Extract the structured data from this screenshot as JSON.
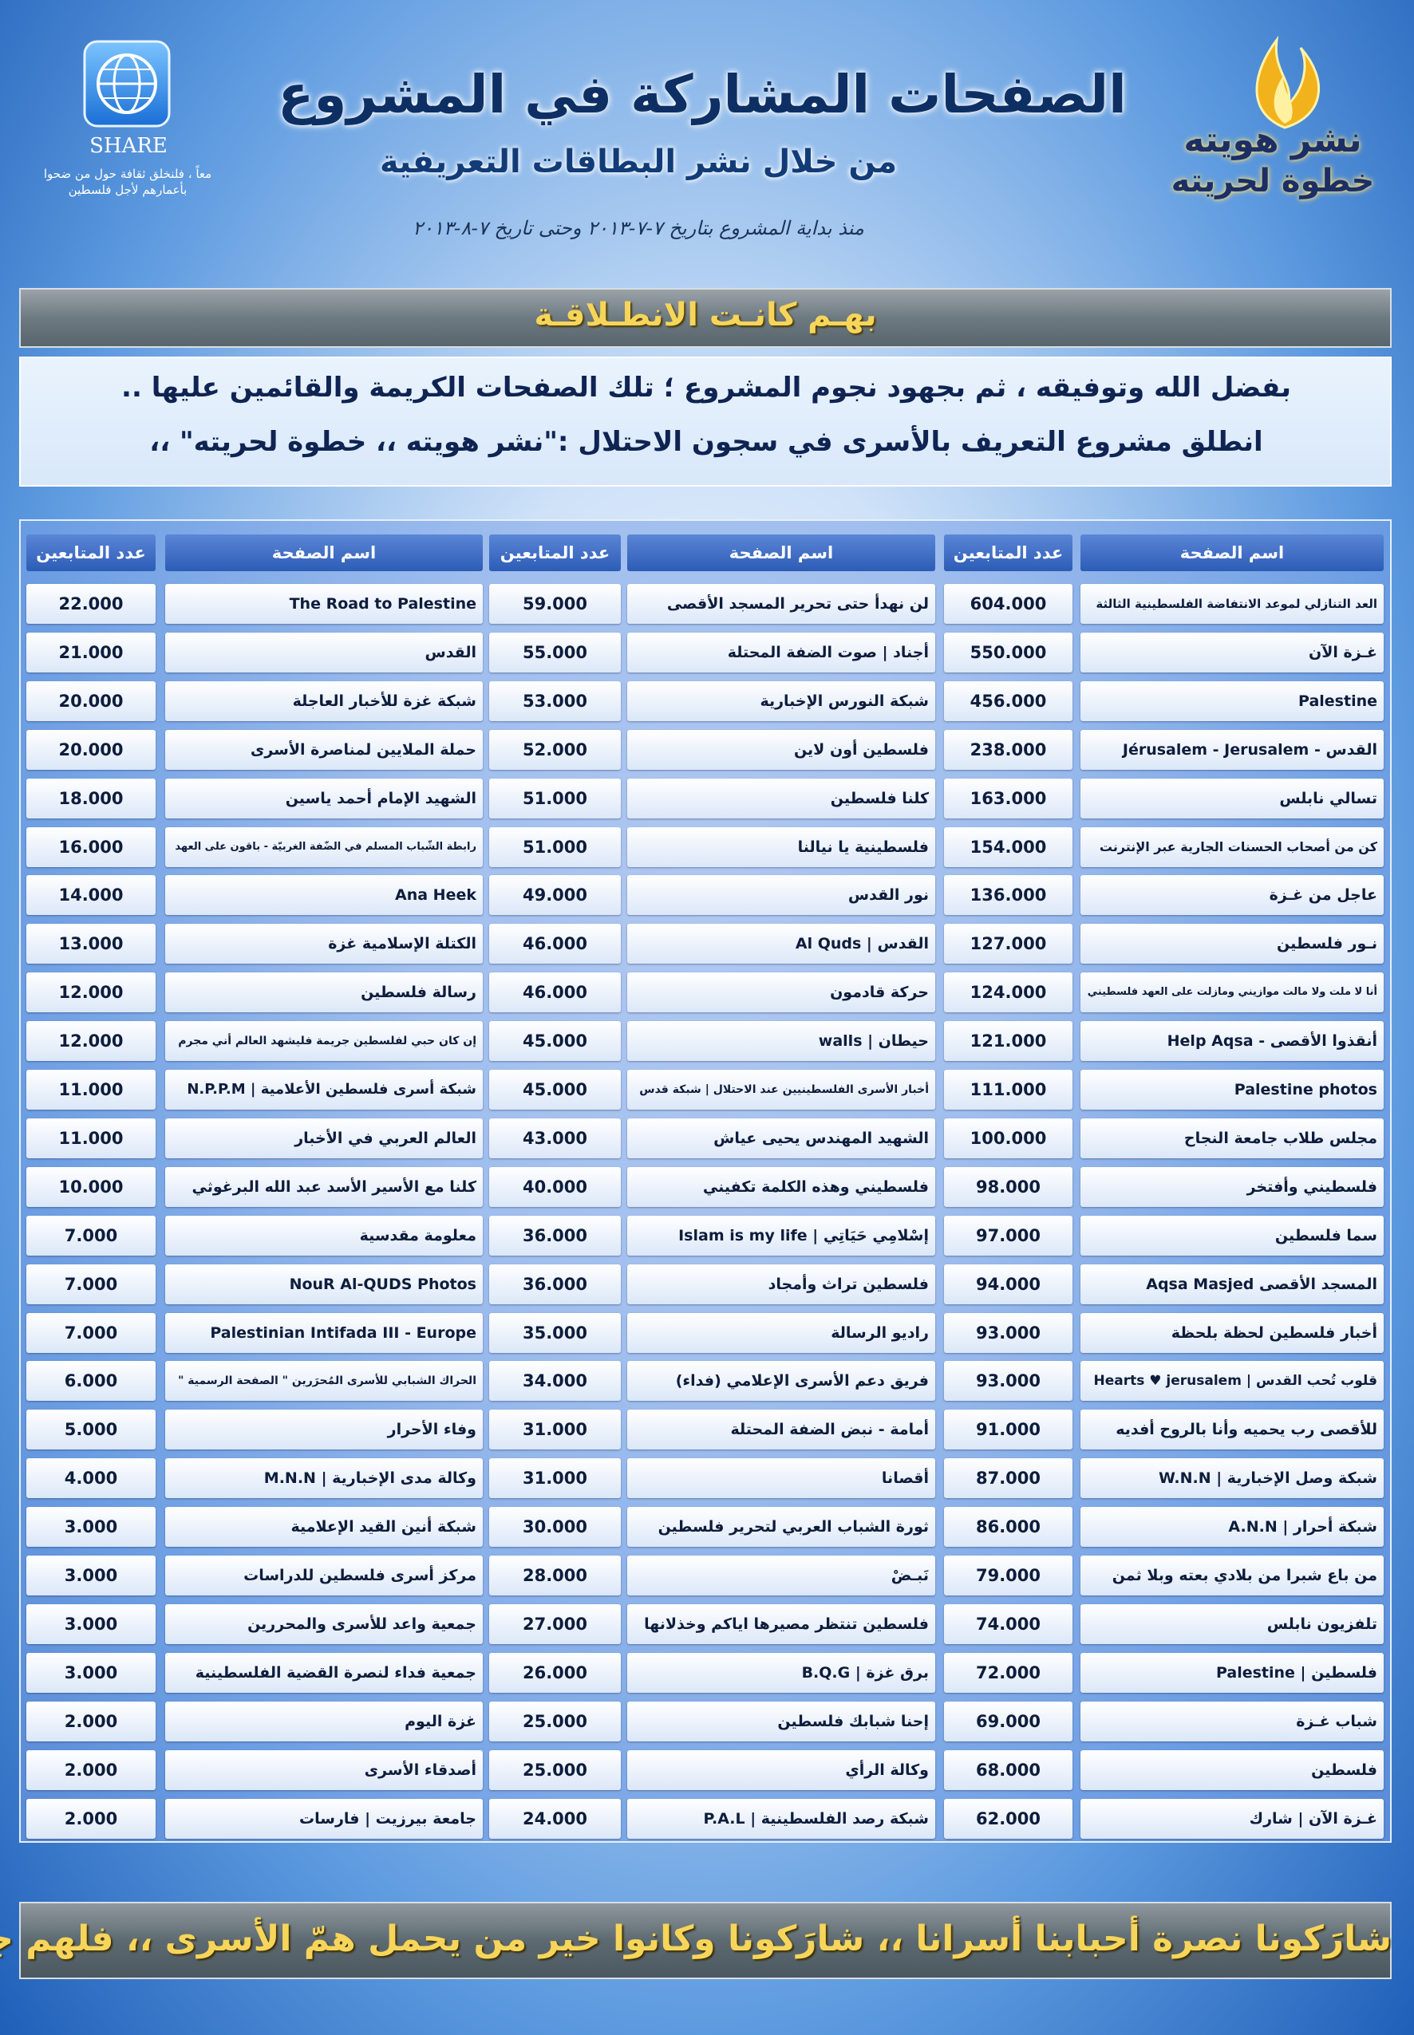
{
  "header": {
    "title": "الصفحات المشاركة في المشروع",
    "subtitle": "من خلال نشر البطاقات التعريفية",
    "date": "منذ بداية المشروع بتاريخ ٧-٧-٢٠١٣ وحتى تاريخ ٧-٨-٢٠١٣"
  },
  "share": {
    "label": "SHARE",
    "tagline": "معاً ، فلنخلق ثقافة حول من ضحوا بأعمارهم لأجل فلسطين"
  },
  "logo": {
    "line1": "نشر هويته",
    "line2": "خطوة لحريته"
  },
  "banner": "بهـم كانـت الانطـلاقـة",
  "intro": [
    "بفضل الله وتوفيقه ، ثم بجهود نجوم المشروع ؛ تلك الصفحات الكريمة والقائمين عليها ..",
    "انطلق مشروع التعريف بالأسرى في سجون الاحتلال :\"نشر هويته ،، خطوة لحريته\" ،،"
  ],
  "table": {
    "columns": [
      "اسم الصفحة",
      "عدد المتابعين"
    ],
    "groups": [
      [
        [
          "العد التنازلي لموعد الانتفاضة الفلسطينية الثالثة",
          "604.000"
        ],
        [
          "غـزة الآن",
          "550.000"
        ],
        [
          "Palestine",
          "456.000"
        ],
        [
          "القدس - Jérusalem - Jerusalem",
          "238.000"
        ],
        [
          "تسالي نابلس",
          "163.000"
        ],
        [
          "كن من أصحاب الحسنات الجارية عبر الإنترنت",
          "154.000"
        ],
        [
          "عاجل من غـزة",
          "136.000"
        ],
        [
          "نـور فلسطين",
          "127.000"
        ],
        [
          "أنا لا ملت ولا مالت موازيني ومازلت على العهد فلسطيني",
          "124.000"
        ],
        [
          "أنقذوا الأقصى - Help Aqsa",
          "121.000"
        ],
        [
          "Palestine photos",
          "111.000"
        ],
        [
          "مجلس طلاب جامعة النجاح",
          "100.000"
        ],
        [
          "فلسطيني وأفتخر",
          "98.000"
        ],
        [
          "سما فلسطين",
          "97.000"
        ],
        [
          "المسجد الأقصى Aqsa Masjed",
          "94.000"
        ],
        [
          "أخبار فلسطين لحظة بلحظة",
          "93.000"
        ],
        [
          "قلوب تُحب القدس | Hearts ♥ jerusalem",
          "93.000"
        ],
        [
          "للأقصى رب يحميه وأنا بالروح أفديه",
          "91.000"
        ],
        [
          "شبكة وصل الإخبارية | W.N.N",
          "87.000"
        ],
        [
          "شبكة أحرار | A.N.N",
          "86.000"
        ],
        [
          "من باع شبرا من بلادي بعته وبلا ثمن",
          "79.000"
        ],
        [
          "تلفزيون نابلس",
          "74.000"
        ],
        [
          "فلسطين | Palestine",
          "72.000"
        ],
        [
          "شباب غـزة",
          "69.000"
        ],
        [
          "فلسطين",
          "68.000"
        ],
        [
          "غـزة الآن | شارك",
          "62.000"
        ]
      ],
      [
        [
          "لن نهدأ حتى تحرير المسجد الأقصى",
          "59.000"
        ],
        [
          "أجناد | صوت الضفة المحتلة",
          "55.000"
        ],
        [
          "شبكة النورس الإخبارية",
          "53.000"
        ],
        [
          "فلسطين أون لاين",
          "52.000"
        ],
        [
          "كلنا فلسطين",
          "51.000"
        ],
        [
          "فلسطينية يا نيالنا",
          "51.000"
        ],
        [
          "نور القدس",
          "49.000"
        ],
        [
          "القدس | Al Quds",
          "46.000"
        ],
        [
          "حركة قادمون",
          "46.000"
        ],
        [
          "حيطان | walls",
          "45.000"
        ],
        [
          "أخبار الأسرى الفلسطينيين عند الاحتلال | شبكة قدس",
          "45.000"
        ],
        [
          "الشهيد المهندس يحيى عياش",
          "43.000"
        ],
        [
          "فلسطيني وهذه الكلمة تكفيني",
          "40.000"
        ],
        [
          "إسْلامِي حَيَاتِي | Islam is my life",
          "36.000"
        ],
        [
          "فلسطين تراث وأمجاد",
          "36.000"
        ],
        [
          "راديو الرسالة",
          "35.000"
        ],
        [
          "فريق دعم الأسرى الإعلامي (فداء)",
          "34.000"
        ],
        [
          "أمامة - نبض الضفة المحتلة",
          "31.000"
        ],
        [
          "أقصانا",
          "31.000"
        ],
        [
          "ثورة الشباب العربي لتحرير فلسطين",
          "30.000"
        ],
        [
          "نَبـضْ",
          "28.000"
        ],
        [
          "فلسطين تنتظر مصيرها اياكم وخذلانها",
          "27.000"
        ],
        [
          "برق غزة | B.Q.G",
          "26.000"
        ],
        [
          "إحنا شبابك فلسطين",
          "25.000"
        ],
        [
          "وكالة الرأي",
          "25.000"
        ],
        [
          "شبكة رصد الفلسطينية | P.A.L",
          "24.000"
        ]
      ],
      [
        [
          "The Road to Palestine",
          "22.000"
        ],
        [
          "القدس",
          "21.000"
        ],
        [
          "شبكة غزة للأخبار العاجلة",
          "20.000"
        ],
        [
          "حملة الملايين لمناصرة الأسرى",
          "20.000"
        ],
        [
          "الشهيد الإمام أحمد ياسين",
          "18.000"
        ],
        [
          "رابطة الشّباب المسلم في الضّفة الغربيّة - باقون على العهد",
          "16.000"
        ],
        [
          "Ana Heek",
          "14.000"
        ],
        [
          "الكتلة الإسلامية غزة",
          "13.000"
        ],
        [
          "رسالة فلسطين",
          "12.000"
        ],
        [
          "إن كان حبي لفلسطين جريمة فليشهد العالم أني مجرم",
          "12.000"
        ],
        [
          "شبكة أسرى فلسطين الأعلامية | N.P.P.M",
          "11.000"
        ],
        [
          "العالم العربي في الأخبار",
          "11.000"
        ],
        [
          "كلنا مع الأسير الأسد عبد الله البرغوثي",
          "10.000"
        ],
        [
          "معلومة مقدسية",
          "7.000"
        ],
        [
          "NouR Al-QUDS Photos",
          "7.000"
        ],
        [
          "Palestinian Intifada III - Europe",
          "7.000"
        ],
        [
          "الحراك الشبابي للأسرى المُحرَرين \" الصفحة الرسمية \"",
          "6.000"
        ],
        [
          "وفاء الأحرار",
          "5.000"
        ],
        [
          "وكالة مدى الإخبارية | M.N.N",
          "4.000"
        ],
        [
          "شبكة أنين القيد الإعلامية",
          "3.000"
        ],
        [
          "مركز أسرى فلسطين للدراسات",
          "3.000"
        ],
        [
          "جمعية واعد للأسرى والمحررين",
          "3.000"
        ],
        [
          "جمعية فداء لنصرة القضية الفلسطينية",
          "3.000"
        ],
        [
          "غزة اليوم",
          "2.000"
        ],
        [
          "أصدقاء الأسرى",
          "2.000"
        ],
        [
          "جامعة بيرزيت | فارسات",
          "2.000"
        ]
      ]
    ]
  },
  "footer": "شارَكونا نصرة أحبابنا أسرانا ،، شارَكونا وكانوا خير من يحمل همّ الأسرى ،، فلهم جزيل الشكر"
}
